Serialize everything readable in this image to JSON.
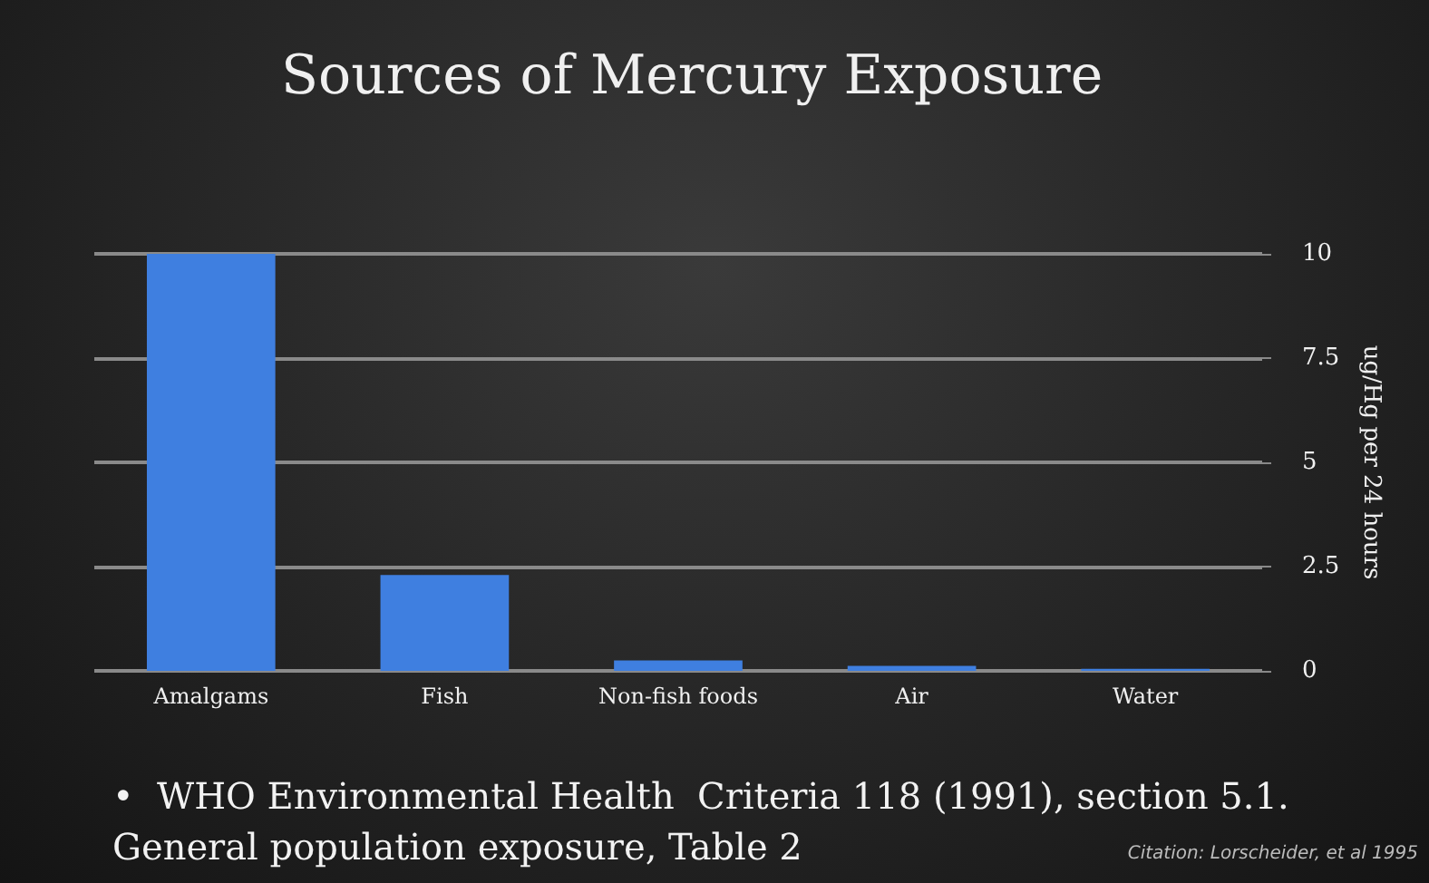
{
  "chart_data": {
    "type": "bar",
    "title": "Sources of Mercury Exposure",
    "ylabel": "ug/Hg per 24 hours",
    "categories": [
      "Amalgams",
      "Fish",
      "Non-fish foods",
      "Air",
      "Water"
    ],
    "values": [
      10,
      2.3,
      0.25,
      0.12,
      0.05
    ],
    "color": "#3f7fe0",
    "ylim": [
      0,
      10
    ],
    "yticks": [
      0,
      2.5,
      5,
      7.5,
      10
    ],
    "grid": "y",
    "annotations": [
      "•  WHO Environmental Health  Criteria 118 (1991), section 5.1.\nGeneral population exposure, Table 2",
      "Citation: Lorscheider, et al 1995"
    ]
  }
}
